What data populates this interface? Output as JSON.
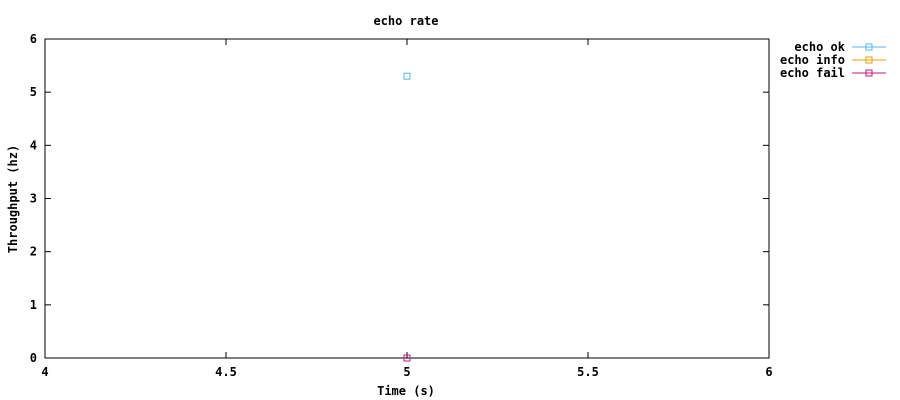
{
  "chart_data": {
    "type": "scatter",
    "title": "echo rate",
    "xlabel": "Time (s)",
    "ylabel": "Throughput (hz)",
    "xlim": [
      4,
      6
    ],
    "ylim": [
      0,
      6
    ],
    "xticks": [
      "4",
      "4.5",
      "5",
      "5.5",
      "6"
    ],
    "yticks": [
      "0",
      "1",
      "2",
      "3",
      "4",
      "5",
      "6"
    ],
    "grid": false,
    "legend_position": "outside-top-right",
    "series": [
      {
        "name": "echo ok",
        "color": "#56b4e9",
        "points": [
          {
            "x": 5,
            "y": 5.3
          }
        ]
      },
      {
        "name": "echo info",
        "color": "#e69f00",
        "points": [
          {
            "x": 5,
            "y": 0
          }
        ]
      },
      {
        "name": "echo fail",
        "color": "#c01880",
        "points": [
          {
            "x": 5,
            "y": 0
          }
        ]
      }
    ]
  }
}
